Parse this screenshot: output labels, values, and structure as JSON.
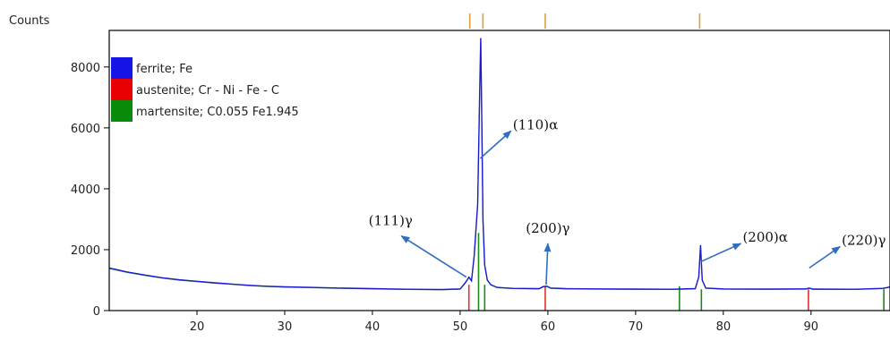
{
  "chart_data": {
    "type": "line",
    "ylabel": "Counts",
    "xlim": [
      10,
      99
    ],
    "ylim": [
      0,
      9200
    ],
    "x_ticks": [
      20,
      30,
      40,
      50,
      60,
      70,
      80,
      90
    ],
    "y_ticks": [
      0,
      2000,
      4000,
      6000,
      8000
    ],
    "legend": {
      "position": "top-left",
      "entries": [
        {
          "label": "ferrite; Fe",
          "color": "#1414e6"
        },
        {
          "label": "austenite; Cr - Ni - Fe - C",
          "color": "#e60000"
        },
        {
          "label": "martensite; C0.055 Fe1.945",
          "color": "#0a8a0a"
        }
      ]
    },
    "series": [
      {
        "name": "ferrite; Fe",
        "color": "#1a1ad0",
        "x": [
          10,
          12,
          14,
          16,
          18,
          20,
          22,
          24,
          26,
          28,
          30,
          33,
          36,
          40,
          44,
          48,
          50,
          50.6,
          51.0,
          51.3,
          51.6,
          52.0,
          52.2,
          52.35,
          52.45,
          52.6,
          52.8,
          53.1,
          53.5,
          54.2,
          56,
          59.0,
          59.5,
          59.9,
          60.3,
          62,
          66,
          70,
          74,
          76.8,
          77.2,
          77.4,
          77.6,
          78.0,
          80,
          85,
          89.4,
          89.8,
          90.2,
          95,
          98.2,
          99
        ],
        "y": [
          1400,
          1270,
          1170,
          1080,
          1010,
          960,
          910,
          870,
          830,
          800,
          780,
          760,
          740,
          720,
          700,
          690,
          710,
          920,
          1100,
          980,
          1800,
          3500,
          6800,
          8950,
          6700,
          3000,
          1500,
          1000,
          850,
          760,
          730,
          720,
          790,
          800,
          740,
          720,
          710,
          705,
          700,
          720,
          1100,
          2150,
          1000,
          740,
          710,
          705,
          710,
          740,
          705,
          700,
          730,
          780
        ]
      }
    ],
    "reference_patterns": [
      {
        "name": "austenite; Cr - Ni - Fe - C",
        "color": "#e03030",
        "lines": [
          {
            "x": 51.0,
            "y": 850
          },
          {
            "x": 59.7,
            "y": 800
          },
          {
            "x": 89.7,
            "y": 700
          }
        ]
      },
      {
        "name": "martensite; C0.055 Fe1.945",
        "color": "#1a8a1a",
        "lines": [
          {
            "x": 52.1,
            "y": 2550
          },
          {
            "x": 52.8,
            "y": 850
          },
          {
            "x": 75.0,
            "y": 800
          },
          {
            "x": 77.5,
            "y": 700
          },
          {
            "x": 98.3,
            "y": 700
          }
        ]
      }
    ],
    "top_markers": {
      "color": "#d9a040",
      "x": [
        51.1,
        52.6,
        59.7,
        77.3
      ]
    },
    "annotations": [
      {
        "text": "(110)α",
        "label_x": 55.8,
        "label_y": 5900,
        "target_x": 52.3,
        "target_y": 5000
      },
      {
        "text": "(111)γ",
        "label_x": 43.3,
        "label_y": 2450,
        "target_x": 50.7,
        "target_y": 1100
      },
      {
        "text": "(200)γ",
        "label_x": 60.0,
        "label_y": 2200,
        "target_x": 59.8,
        "target_y": 850
      },
      {
        "text": "(200)α",
        "label_x": 82.0,
        "label_y": 2200,
        "target_x": 77.4,
        "target_y": 1600
      },
      {
        "text": "(220)γ",
        "label_x": 93.3,
        "label_y": 2100,
        "target_x": 89.8,
        "target_y": 1400
      }
    ]
  }
}
